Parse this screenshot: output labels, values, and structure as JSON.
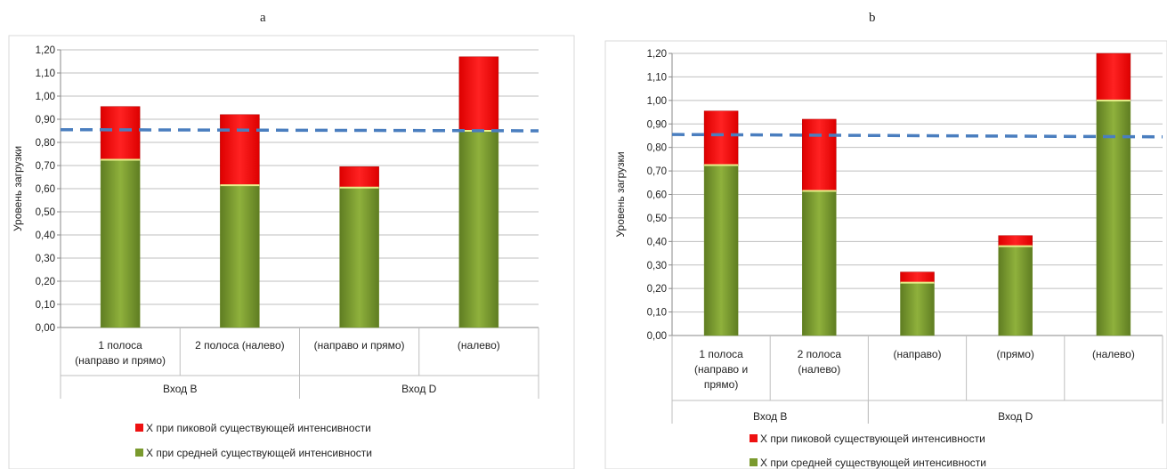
{
  "panels": [
    {
      "id": "a",
      "letter": "a",
      "chart_data": {
        "type": "bar",
        "stacked": true,
        "ylabel": "Уровень загрузки",
        "ylim": [
          0,
          1.2
        ],
        "ytick_step": 0.1,
        "ytick_labels": [
          "0,00",
          "0,10",
          "0,20",
          "0,30",
          "0,40",
          "0,50",
          "0,60",
          "0,70",
          "0,80",
          "0,90",
          "1,00",
          "1,10",
          "1,20"
        ],
        "categories": [
          {
            "lines": [
              "1 полоса",
              "(направо и прямо)"
            ]
          },
          {
            "lines": [
              "2 полоса (налево)"
            ]
          },
          {
            "lines": [
              "(направо и прямо)"
            ]
          },
          {
            "lines": [
              "(налево)"
            ]
          }
        ],
        "groups": [
          {
            "label": "Вход B",
            "span": 2
          },
          {
            "label": "Вход D",
            "span": 2
          }
        ],
        "series": [
          {
            "name": "Х при средней существующей интенсивности",
            "color": "#7a9a2e",
            "values": [
              0.725,
              0.615,
              0.605,
              0.85
            ]
          },
          {
            "name": "Х при пиковой существующей интенсивности",
            "color": "#ee1111",
            "values": [
              0.23,
              0.305,
              0.09,
              0.32
            ]
          }
        ],
        "reference_line": {
          "y_start": 0.855,
          "y_end": 0.85,
          "color": "#4a7ebf",
          "style": "dashed"
        },
        "legend": [
          "Х при пиковой существующей интенсивности",
          "Х при средней существующей интенсивности"
        ],
        "legend_position": "bottom",
        "grid": true
      }
    },
    {
      "id": "b",
      "letter": "b",
      "chart_data": {
        "type": "bar",
        "stacked": true,
        "ylabel": "Уровень загрузки",
        "ylim": [
          0,
          1.2
        ],
        "ytick_step": 0.1,
        "ytick_labels": [
          "0,00",
          "0,10",
          "0,20",
          "0,30",
          "0,40",
          "0,50",
          "0,60",
          "0,70",
          "0,80",
          "0,90",
          "1,00",
          "1,10",
          "1,20"
        ],
        "categories": [
          {
            "lines": [
              "1 полоса",
              "(направо и",
              "прямо)"
            ]
          },
          {
            "lines": [
              "2 полоса",
              "(налево)"
            ]
          },
          {
            "lines": [
              "(направо)"
            ]
          },
          {
            "lines": [
              "(прямо)"
            ]
          },
          {
            "lines": [
              "(налево)"
            ]
          }
        ],
        "groups": [
          {
            "label": "Вход B",
            "span": 2
          },
          {
            "label": "Вход D",
            "span": 3
          }
        ],
        "series": [
          {
            "name": "Х при средней существующей интенсивности",
            "color": "#7a9a2e",
            "values": [
              0.725,
              0.615,
              0.225,
              0.38,
              1.0
            ]
          },
          {
            "name": "Х при пиковой существующей интенсивности",
            "color": "#ee1111",
            "values": [
              0.23,
              0.305,
              0.045,
              0.045,
              0.2
            ]
          }
        ],
        "reference_line": {
          "y_start": 0.855,
          "y_end": 0.845,
          "color": "#4a7ebf",
          "style": "dashed"
        },
        "legend": [
          "Х при пиковой существующей интенсивности",
          "Х при средней существующей интенсивности"
        ],
        "legend_position": "bottom",
        "grid": true
      }
    }
  ]
}
